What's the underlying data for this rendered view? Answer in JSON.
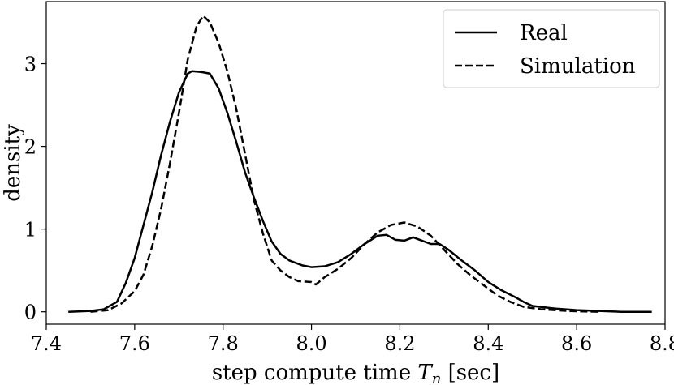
{
  "chart_data": {
    "type": "line",
    "xlabel": "step compute time",
    "xlabel_symbol": "T",
    "xlabel_subscript": "n",
    "xlabel_unit": "[sec]",
    "ylabel": "density",
    "xlim": [
      7.4,
      8.8
    ],
    "ylim": [
      -0.15,
      3.75
    ],
    "x_ticks": [
      7.4,
      7.6,
      7.8,
      8.0,
      8.2,
      8.4,
      8.6,
      8.8
    ],
    "x_tick_labels": [
      "7.4",
      "7.6",
      "7.8",
      "8.0",
      "8.2",
      "8.4",
      "8.6",
      "8.8"
    ],
    "y_ticks": [
      0,
      1,
      2,
      3
    ],
    "y_tick_labels": [
      "0",
      "1",
      "2",
      "3"
    ],
    "grid": false,
    "legend_position": "top-right",
    "series": [
      {
        "name": "Real",
        "style": "solid",
        "color": "#000000",
        "points": [
          [
            7.45,
            0.0
          ],
          [
            7.5,
            0.01
          ],
          [
            7.53,
            0.03
          ],
          [
            7.56,
            0.12
          ],
          [
            7.58,
            0.35
          ],
          [
            7.6,
            0.65
          ],
          [
            7.62,
            1.05
          ],
          [
            7.64,
            1.45
          ],
          [
            7.66,
            1.9
          ],
          [
            7.68,
            2.3
          ],
          [
            7.7,
            2.65
          ],
          [
            7.72,
            2.88
          ],
          [
            7.73,
            2.91
          ],
          [
            7.75,
            2.9
          ],
          [
            7.77,
            2.88
          ],
          [
            7.79,
            2.7
          ],
          [
            7.81,
            2.4
          ],
          [
            7.83,
            2.05
          ],
          [
            7.85,
            1.68
          ],
          [
            7.87,
            1.38
          ],
          [
            7.89,
            1.1
          ],
          [
            7.91,
            0.85
          ],
          [
            7.93,
            0.7
          ],
          [
            7.95,
            0.62
          ],
          [
            7.98,
            0.56
          ],
          [
            8.0,
            0.54
          ],
          [
            8.03,
            0.55
          ],
          [
            8.06,
            0.6
          ],
          [
            8.09,
            0.7
          ],
          [
            8.12,
            0.82
          ],
          [
            8.15,
            0.92
          ],
          [
            8.17,
            0.93
          ],
          [
            8.19,
            0.87
          ],
          [
            8.21,
            0.86
          ],
          [
            8.23,
            0.9
          ],
          [
            8.25,
            0.86
          ],
          [
            8.27,
            0.82
          ],
          [
            8.29,
            0.82
          ],
          [
            8.31,
            0.75
          ],
          [
            8.34,
            0.62
          ],
          [
            8.37,
            0.5
          ],
          [
            8.4,
            0.36
          ],
          [
            8.43,
            0.26
          ],
          [
            8.46,
            0.18
          ],
          [
            8.48,
            0.12
          ],
          [
            8.5,
            0.07
          ],
          [
            8.55,
            0.04
          ],
          [
            8.6,
            0.02
          ],
          [
            8.65,
            0.01
          ],
          [
            8.7,
            0.0
          ],
          [
            8.77,
            0.0
          ]
        ]
      },
      {
        "name": "Simulation",
        "style": "dashed",
        "color": "#000000",
        "points": [
          [
            7.5,
            0.0
          ],
          [
            7.54,
            0.02
          ],
          [
            7.57,
            0.1
          ],
          [
            7.6,
            0.25
          ],
          [
            7.62,
            0.45
          ],
          [
            7.64,
            0.8
          ],
          [
            7.66,
            1.25
          ],
          [
            7.68,
            1.8
          ],
          [
            7.7,
            2.4
          ],
          [
            7.72,
            3.05
          ],
          [
            7.74,
            3.45
          ],
          [
            7.755,
            3.58
          ],
          [
            7.77,
            3.5
          ],
          [
            7.79,
            3.25
          ],
          [
            7.81,
            2.9
          ],
          [
            7.83,
            2.45
          ],
          [
            7.85,
            1.9
          ],
          [
            7.87,
            1.35
          ],
          [
            7.89,
            0.95
          ],
          [
            7.91,
            0.62
          ],
          [
            7.93,
            0.5
          ],
          [
            7.95,
            0.42
          ],
          [
            7.97,
            0.37
          ],
          [
            8.0,
            0.36
          ],
          [
            8.01,
            0.33
          ],
          [
            8.03,
            0.42
          ],
          [
            8.06,
            0.52
          ],
          [
            8.09,
            0.65
          ],
          [
            8.12,
            0.82
          ],
          [
            8.15,
            0.96
          ],
          [
            8.18,
            1.05
          ],
          [
            8.21,
            1.08
          ],
          [
            8.24,
            1.03
          ],
          [
            8.27,
            0.92
          ],
          [
            8.3,
            0.75
          ],
          [
            8.33,
            0.58
          ],
          [
            8.36,
            0.44
          ],
          [
            8.39,
            0.32
          ],
          [
            8.42,
            0.2
          ],
          [
            8.45,
            0.12
          ],
          [
            8.48,
            0.06
          ],
          [
            8.52,
            0.03
          ],
          [
            8.58,
            0.01
          ],
          [
            8.65,
            0.0
          ]
        ]
      }
    ]
  }
}
